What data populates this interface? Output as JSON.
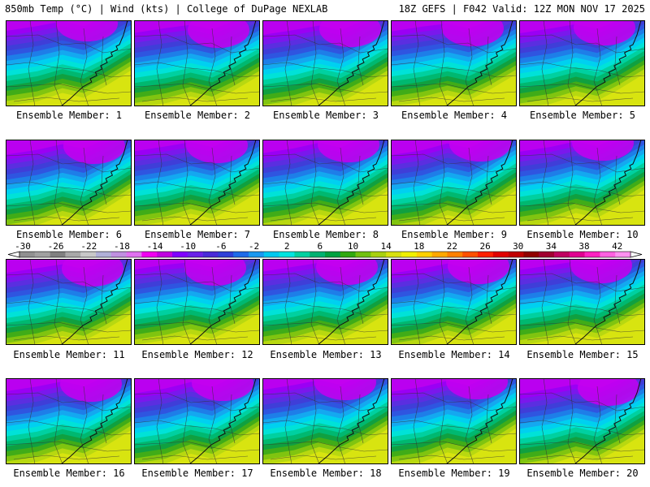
{
  "header": {
    "left": "850mb Temp (°C) | Wind (kts) | College of DuPage NEXLAB",
    "right": "18Z GEFS | F042 Valid: 12Z MON NOV 17 2025"
  },
  "panels": [
    {
      "label": "Ensemble Member: 1"
    },
    {
      "label": "Ensemble Member: 2"
    },
    {
      "label": "Ensemble Member: 3"
    },
    {
      "label": "Ensemble Member: 4"
    },
    {
      "label": "Ensemble Member: 5"
    },
    {
      "label": "Ensemble Member: 6"
    },
    {
      "label": "Ensemble Member: 7"
    },
    {
      "label": "Ensemble Member: 8"
    },
    {
      "label": "Ensemble Member: 9"
    },
    {
      "label": "Ensemble Member: 10"
    },
    {
      "label": "Ensemble Member: 11"
    },
    {
      "label": "Ensemble Member: 12"
    },
    {
      "label": "Ensemble Member: 13"
    },
    {
      "label": "Ensemble Member: 14"
    },
    {
      "label": "Ensemble Member: 15"
    },
    {
      "label": "Ensemble Member: 16"
    },
    {
      "label": "Ensemble Member: 17"
    },
    {
      "label": "Ensemble Member: 18"
    },
    {
      "label": "Ensemble Member: 19"
    },
    {
      "label": "Ensemble Member: 20"
    }
  ],
  "colorbar": {
    "labels": [
      "-30",
      "-26",
      "-22",
      "-18",
      "-14",
      "-10",
      "-6",
      "-2",
      "2",
      "6",
      "10",
      "14",
      "18",
      "22",
      "26",
      "30",
      "34",
      "38",
      "42"
    ],
    "colors": [
      "#909090",
      "#a0a0a0",
      "#808080",
      "#a8a8a8",
      "#c8c8c8",
      "#b0b0d8",
      "#c090e0",
      "#e070f0",
      "#f000f0",
      "#c000e0",
      "#8000ff",
      "#6a20e8",
      "#4a2ad8",
      "#2f3fd8",
      "#1e6ae8",
      "#1a98f0",
      "#00c8f0",
      "#00e4e0",
      "#00d0a0",
      "#00b070",
      "#00a040",
      "#30a810",
      "#70c010",
      "#a8d010",
      "#d8e010",
      "#f0f000",
      "#ffd000",
      "#ffa800",
      "#ff8000",
      "#ff5000",
      "#ff2000",
      "#e00000",
      "#c00000",
      "#900000",
      "#a00030",
      "#c00060",
      "#e00090",
      "#ff20c0",
      "#ff60e0",
      "#ff90f0"
    ]
  }
}
